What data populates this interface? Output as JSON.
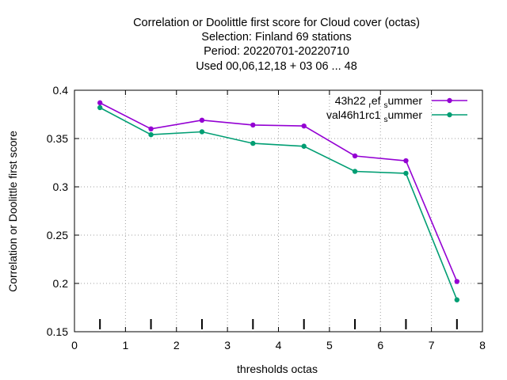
{
  "chart_data": {
    "type": "line",
    "title_lines": [
      "Correlation or Doolittle first score  for Cloud cover (octas)",
      "Selection: Finland     69 stations",
      "Period: 20220701-20220710",
      "Used  00,06,12,18  + 03 06 ... 48"
    ],
    "xlabel": "thresholds octas",
    "ylabel": "Correlation or Doolittle first score",
    "xlim": [
      0,
      8
    ],
    "ylim": [
      0.15,
      0.4
    ],
    "xticks": [
      0,
      1,
      2,
      3,
      4,
      5,
      6,
      7,
      8
    ],
    "yticks": [
      0.15,
      0.2,
      0.25,
      0.3,
      0.35,
      0.4
    ],
    "xtick_labels": [
      "0",
      "1",
      "2",
      "3",
      "4",
      "5",
      "6",
      "7",
      "8"
    ],
    "ytick_labels": [
      "0.15",
      "0.2",
      "0.25",
      "0.3",
      "0.35",
      "0.4"
    ],
    "grid": true,
    "legend_position": "top-right",
    "threshold_marks_x": [
      0.5,
      1.5,
      2.5,
      3.5,
      4.5,
      5.5,
      6.5,
      7.5
    ],
    "series": [
      {
        "name": "43h22_ref_summer",
        "legend_parts": [
          "43h22",
          "r",
          "ef",
          "s",
          "ummer"
        ],
        "color": "#9400d3",
        "x": [
          0.5,
          1.5,
          2.5,
          3.5,
          4.5,
          5.5,
          6.5,
          7.5
        ],
        "y": [
          0.387,
          0.36,
          0.369,
          0.364,
          0.363,
          0.332,
          0.327,
          0.202
        ]
      },
      {
        "name": "val46h1rc1_summer",
        "legend_parts": [
          "val46h1rc1",
          "s",
          "ummer"
        ],
        "color": "#009e73",
        "x": [
          0.5,
          1.5,
          2.5,
          3.5,
          4.5,
          5.5,
          6.5,
          7.5
        ],
        "y": [
          0.382,
          0.354,
          0.357,
          0.345,
          0.342,
          0.316,
          0.314,
          0.183
        ]
      }
    ]
  }
}
